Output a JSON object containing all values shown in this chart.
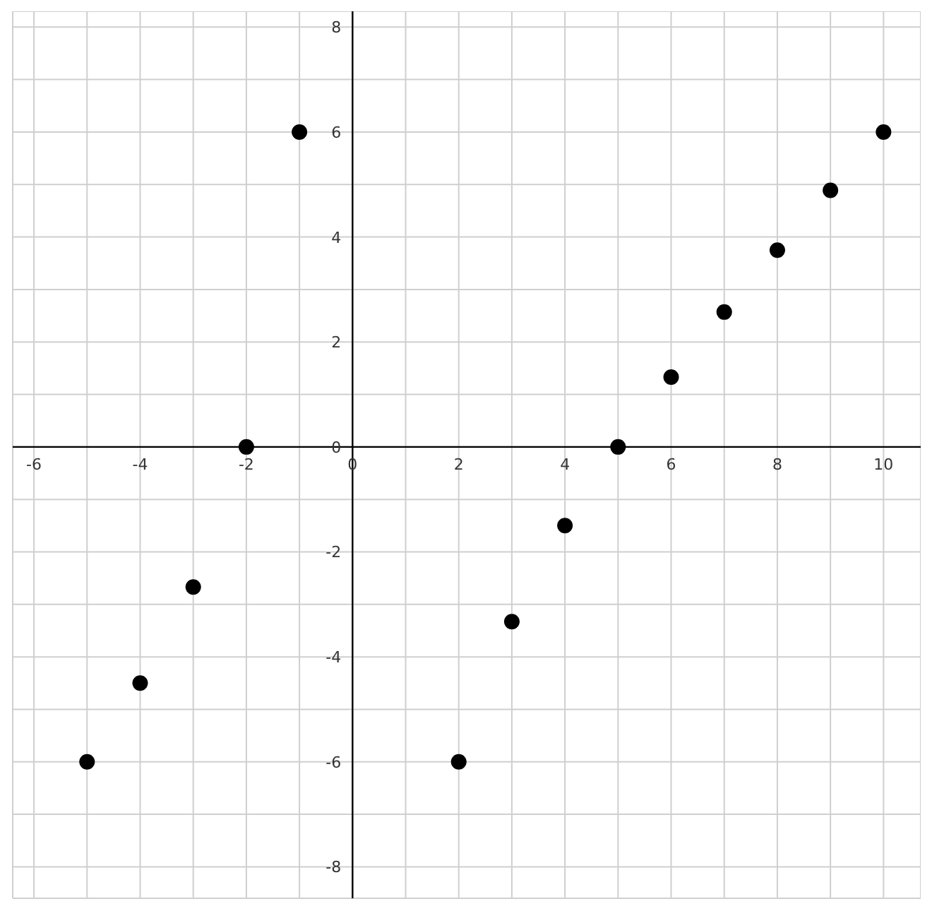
{
  "chart_data": {
    "type": "scatter",
    "x": [
      -5,
      -4,
      -3,
      -2,
      -1,
      2,
      3,
      4,
      5,
      6,
      7,
      8,
      9,
      10
    ],
    "series": [
      {
        "color": "#000000",
        "values": [
          -6,
          -4.5,
          -2.67,
          0,
          6,
          -6,
          -3.33,
          -1.5,
          0,
          1.33,
          2.57,
          3.75,
          4.89,
          6
        ]
      }
    ],
    "xlim": [
      -6.4,
      10.7
    ],
    "ylim": [
      -8.6,
      8.3
    ],
    "xticks": [
      -6,
      {
        "value": -5,
        "label": null
      },
      -4,
      {
        "value": -3,
        "label": null
      },
      -2,
      {
        "value": -1,
        "label": null
      },
      0,
      {
        "value": 1,
        "label": null
      },
      2,
      {
        "value": 3,
        "label": null
      },
      4,
      {
        "value": 5,
        "label": null
      },
      6,
      {
        "value": 7,
        "label": null
      },
      8,
      {
        "value": 9,
        "label": null
      },
      10
    ],
    "yticks": [
      -8,
      {
        "value": -7,
        "label": null
      },
      -6,
      {
        "value": -5,
        "label": null
      },
      -4,
      {
        "value": -3,
        "label": null
      },
      -2,
      {
        "value": -1,
        "label": null
      },
      0,
      {
        "value": 1,
        "label": null
      },
      2,
      {
        "value": 3,
        "label": null
      },
      4,
      {
        "value": 5,
        "label": null
      },
      6,
      {
        "value": 7,
        "label": null
      },
      8
    ],
    "grid": true,
    "marker": "circle"
  }
}
